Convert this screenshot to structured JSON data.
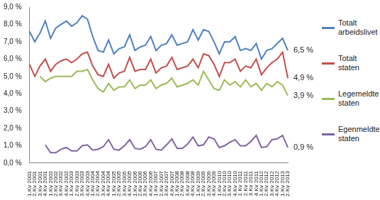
{
  "chart_data": {
    "type": "line",
    "categories": [
      "1.Kv 2001",
      "2.Kv 2001",
      "3.Kv 2001",
      "4.Kv 2001",
      "1.Kv 2002",
      "2.Kv 2002",
      "3.Kv 2002",
      "4.Kv 2002",
      "1.Kv 2003",
      "2.Kv 2003",
      "3.Kv 2003",
      "4.Kv 2003",
      "1.Kv 2004",
      "2.Kv 2004",
      "3.Kv 2004",
      "4.Kv 2004",
      "1.Kv 2005",
      "2.Kv 2005",
      "3.Kv 2005",
      "4.Kv 2005",
      "1.Kv 2006",
      "2.Kv 2006",
      "3.Kv 2006",
      "4.Kv 2006",
      "1.Kv 2007",
      "2.Kv 2007",
      "3.Kv 2007",
      "4.Kv 2007",
      "1.Kv 2008",
      "2.Kv 2008",
      "3.Kv 2008",
      "4.Kv 2008",
      "1.Kv 2009",
      "2.Kv 2009",
      "3.Kv 2009",
      "4.Kv 2009",
      "1.Kv 2010",
      "2.Kv 2010",
      "3.Kv 2010",
      "4.Kv 2010",
      "1.Kv 2011",
      "2.Kv 2011",
      "3.Kv 2011",
      "4.Kv 2011",
      "1.Kv 2012",
      "2.Kv 2012",
      "3.Kv 2012",
      "4.Kv 2012",
      "1.Kv 2013",
      "2.Kv 2013"
    ],
    "series": [
      {
        "name": "Totalt arbeidslivet",
        "color": "#4f81bd",
        "values": [
          7.6,
          7.0,
          7.5,
          8.2,
          7.2,
          7.8,
          8.0,
          8.2,
          7.9,
          8.1,
          8.5,
          8.3,
          7.3,
          6.5,
          6.4,
          7.1,
          6.3,
          6.6,
          6.7,
          7.4,
          6.5,
          6.7,
          6.8,
          7.3,
          6.5,
          6.8,
          6.9,
          7.4,
          6.8,
          6.9,
          7.0,
          7.7,
          7.1,
          7.7,
          7.6,
          7.0,
          6.3,
          7.0,
          7.0,
          7.3,
          6.5,
          6.6,
          6.5,
          6.9,
          6.0,
          6.5,
          6.6,
          6.9,
          7.2,
          6.5
        ]
      },
      {
        "name": "Totalt staten",
        "color": "#c0504d",
        "values": [
          5.7,
          5.0,
          5.6,
          6.0,
          5.3,
          5.7,
          5.9,
          6.0,
          5.8,
          6.0,
          6.3,
          6.4,
          5.6,
          5.1,
          5.0,
          5.7,
          4.9,
          5.2,
          5.3,
          6.1,
          5.3,
          5.4,
          5.4,
          6.0,
          5.2,
          5.5,
          5.6,
          6.1,
          5.4,
          5.5,
          5.6,
          6.0,
          5.5,
          6.3,
          6.2,
          5.7,
          5.0,
          5.8,
          5.8,
          6.0,
          5.3,
          5.6,
          5.5,
          6.0,
          5.1,
          5.5,
          5.8,
          6.0,
          6.4,
          4.9
        ]
      },
      {
        "name": "Legemeldte staten",
        "color": "#9bbb59",
        "values": [
          null,
          null,
          5.0,
          4.7,
          4.9,
          5.0,
          5.0,
          5.0,
          5.0,
          5.3,
          5.3,
          5.4,
          4.8,
          4.3,
          4.1,
          4.6,
          4.2,
          4.4,
          4.4,
          4.8,
          4.3,
          4.5,
          4.5,
          4.8,
          4.3,
          4.5,
          4.6,
          4.9,
          4.4,
          4.5,
          4.6,
          4.8,
          4.5,
          5.3,
          4.8,
          4.3,
          4.2,
          4.8,
          4.5,
          4.7,
          4.4,
          4.8,
          4.4,
          4.6,
          4.2,
          4.6,
          4.4,
          4.7,
          4.5,
          3.9
        ]
      },
      {
        "name": "Egenmeldte staten",
        "color": "#8064a2",
        "values": [
          null,
          null,
          null,
          1.05,
          0.6,
          0.6,
          0.8,
          0.9,
          0.7,
          0.7,
          1.0,
          1.05,
          0.75,
          0.8,
          0.95,
          1.35,
          0.8,
          0.75,
          1.0,
          1.35,
          0.85,
          0.8,
          0.95,
          1.35,
          0.8,
          0.75,
          1.05,
          1.4,
          0.85,
          0.85,
          1.1,
          1.5,
          1.0,
          1.05,
          1.5,
          1.4,
          0.9,
          1.0,
          1.2,
          1.35,
          1.0,
          1.0,
          1.25,
          1.6,
          0.9,
          0.95,
          1.35,
          1.4,
          1.6,
          0.9
        ]
      }
    ],
    "ylim": [
      0,
      9
    ],
    "yticks": [
      {
        "value": 0,
        "label": "0,0 %"
      },
      {
        "value": 1,
        "label": "1,0 %"
      },
      {
        "value": 2,
        "label": "2,0 %"
      },
      {
        "value": 3,
        "label": "3,0 %"
      },
      {
        "value": 4,
        "label": "4,0 %"
      },
      {
        "value": 5,
        "label": "5,0 %"
      },
      {
        "value": 6,
        "label": "6,0 %"
      },
      {
        "value": 7,
        "label": "7,0 %"
      },
      {
        "value": 8,
        "label": "8,0 %"
      },
      {
        "value": 9,
        "label": "9,0 %"
      }
    ],
    "grid": false,
    "legend": "right",
    "annotations": [
      {
        "text": "6,5 %",
        "y": 6.5
      },
      {
        "text": "4,9 %",
        "y": 4.9
      },
      {
        "text": "3,9 %",
        "y": 3.9
      },
      {
        "text": "0,9 %",
        "y": 0.9
      }
    ]
  }
}
